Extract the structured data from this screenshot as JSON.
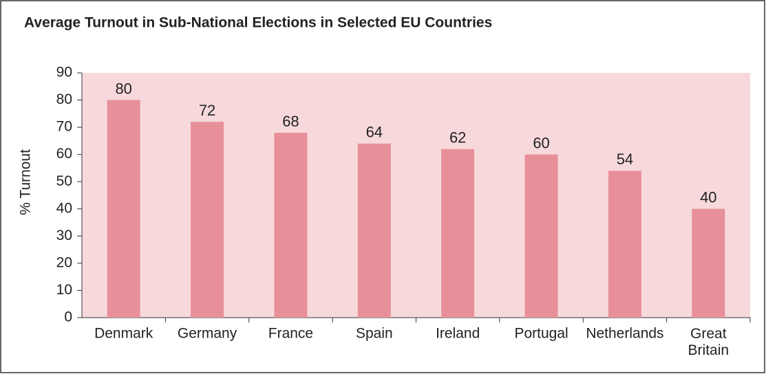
{
  "chart_data": {
    "type": "bar",
    "title": "Average Turnout in Sub-National Elections in Selected EU Countries",
    "ylabel": "% Turnout",
    "categories": [
      "Denmark",
      "Germany",
      "France",
      "Spain",
      "Ireland",
      "Portugal",
      "Netherlands",
      "Great Britain"
    ],
    "values": [
      80,
      72,
      68,
      64,
      62,
      60,
      54,
      40
    ],
    "color": "#e8909a",
    "ylim": [
      0,
      90
    ],
    "yticks": [
      0,
      10,
      20,
      30,
      40,
      50,
      60,
      70,
      80,
      90
    ],
    "grid": false
  }
}
